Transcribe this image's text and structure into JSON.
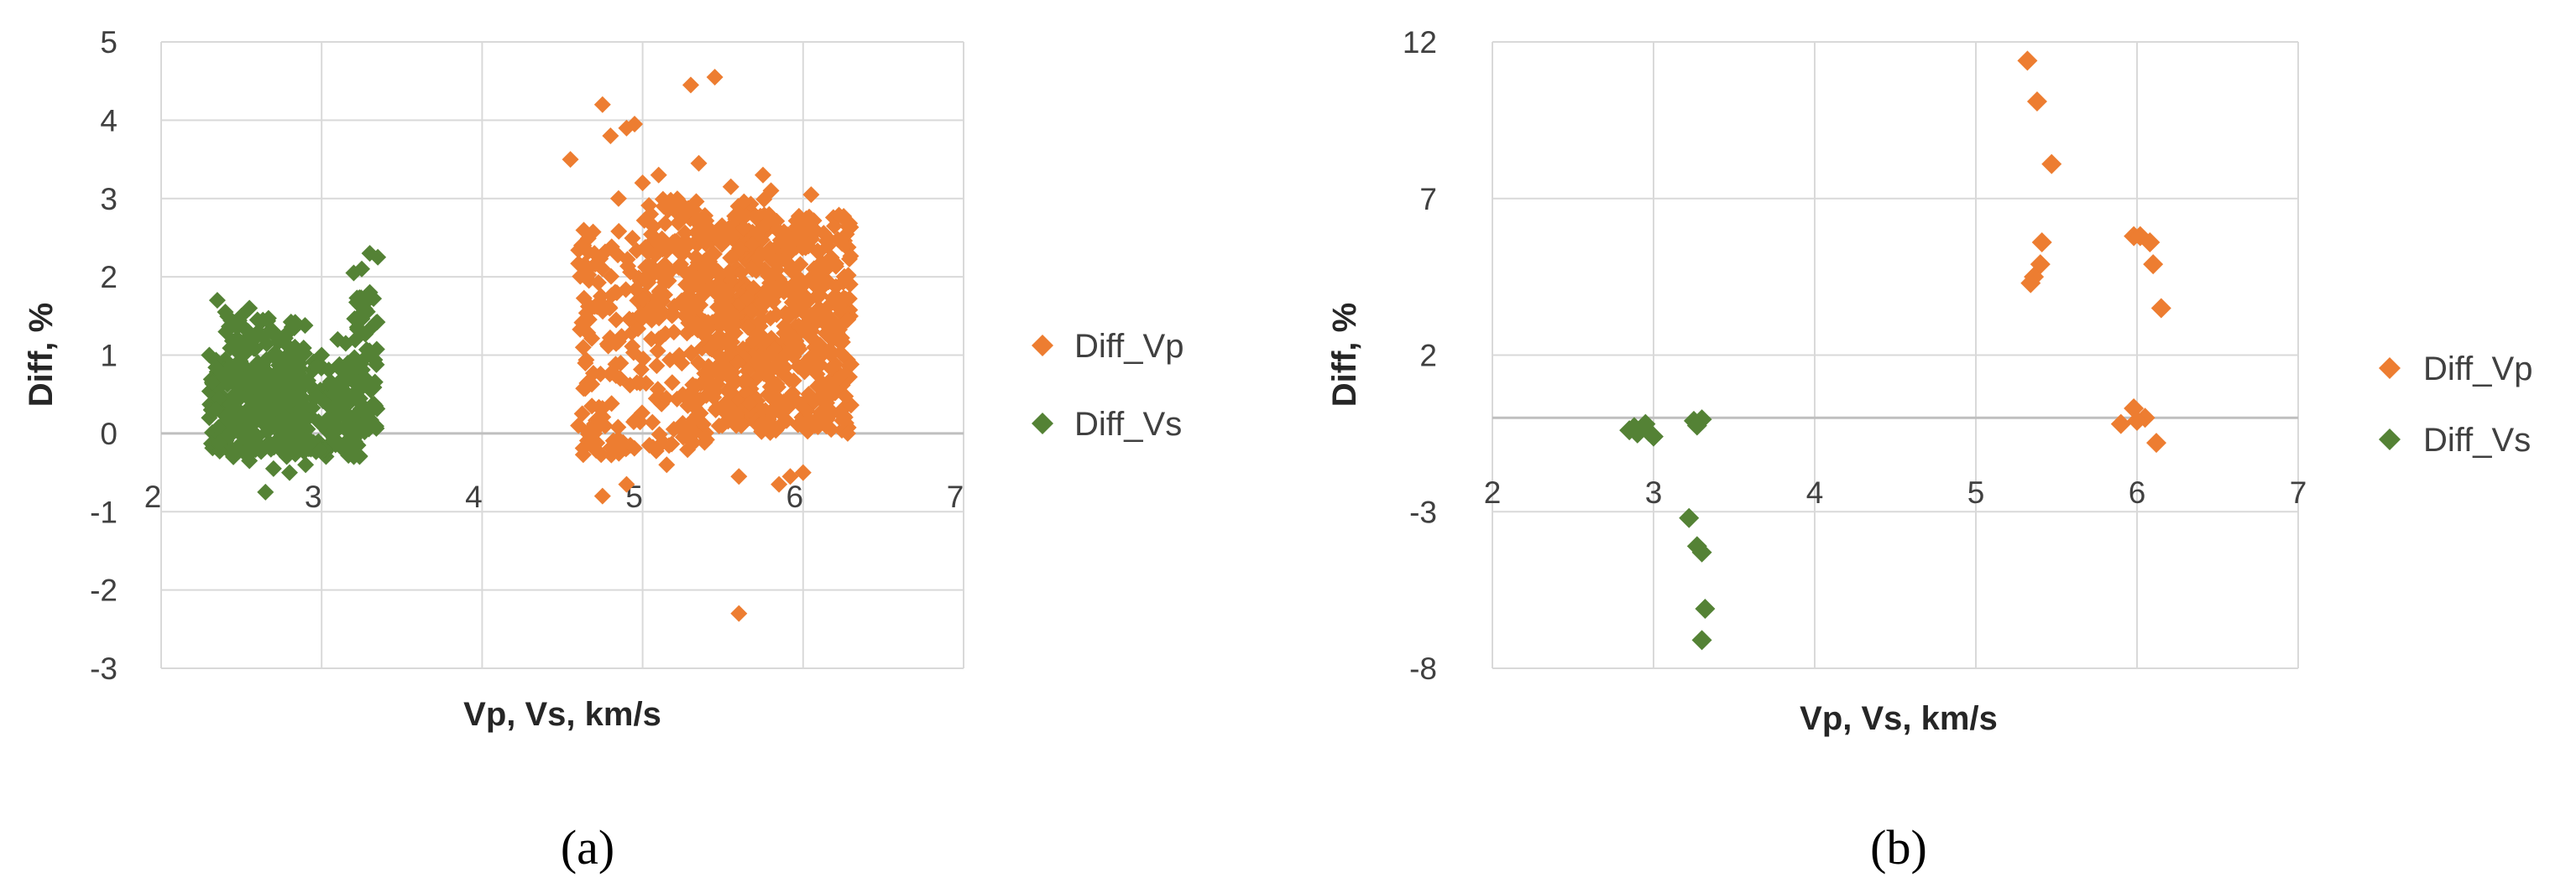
{
  "chart_data": [
    {
      "type": "scatter",
      "panel_label": "(a)",
      "title": "",
      "xlabel": "Vp, Vs, km/s",
      "ylabel": "Diff, %",
      "xlim": [
        2,
        7
      ],
      "ylim": [
        -3,
        5
      ],
      "xticks": [
        "2",
        "3",
        "4",
        "5",
        "6",
        "7"
      ],
      "yticks": [
        "-3",
        "-2",
        "-1",
        "0",
        "1",
        "2",
        "3",
        "4",
        "5"
      ],
      "grid": true,
      "legend_position": "right",
      "series": [
        {
          "name": "Diff_Vp",
          "color": "#ed7d31",
          "marker": "diamond",
          "points": [
            [
              4.55,
              3.5
            ],
            [
              4.62,
              2.4
            ],
            [
              4.7,
              2.3
            ],
            [
              4.75,
              4.2
            ],
            [
              4.8,
              3.8
            ],
            [
              4.85,
              3.0
            ],
            [
              4.9,
              3.9
            ],
            [
              4.95,
              3.95
            ],
            [
              5.0,
              3.2
            ],
            [
              5.05,
              2.8
            ],
            [
              5.1,
              3.3
            ],
            [
              5.2,
              2.9
            ],
            [
              5.3,
              4.45
            ],
            [
              5.35,
              3.45
            ],
            [
              5.45,
              4.55
            ],
            [
              5.55,
              3.15
            ],
            [
              5.75,
              3.3
            ],
            [
              5.8,
              3.1
            ],
            [
              6.05,
              3.05
            ],
            [
              5.6,
              -2.3
            ],
            [
              4.75,
              -0.8
            ],
            [
              4.9,
              -0.65
            ],
            [
              5.15,
              -0.4
            ],
            [
              5.6,
              -0.55
            ],
            [
              5.85,
              -0.65
            ],
            [
              5.92,
              -0.55
            ],
            [
              6.0,
              -0.5
            ],
            [
              4.6,
              0.1
            ],
            [
              4.7,
              0.0
            ]
          ],
          "clouds": [
            {
              "x": [
                5.3,
                6.3
              ],
              "y": [
                0.0,
                2.8
              ],
              "n": 650,
              "seed": 11
            },
            {
              "x": [
                4.6,
                5.4
              ],
              "y": [
                -0.3,
                2.6
              ],
              "n": 220,
              "seed": 23
            },
            {
              "x": [
                5.0,
                5.8
              ],
              "y": [
                1.5,
                3.0
              ],
              "n": 90,
              "seed": 37
            }
          ]
        },
        {
          "name": "Diff_Vs",
          "color": "#548235",
          "marker": "diamond",
          "points": [
            [
              2.35,
              1.7
            ],
            [
              2.4,
              1.55
            ],
            [
              2.5,
              1.5
            ],
            [
              2.55,
              1.6
            ],
            [
              2.6,
              1.45
            ],
            [
              2.7,
              1.3
            ],
            [
              3.2,
              2.05
            ],
            [
              3.25,
              2.1
            ],
            [
              3.3,
              2.3
            ],
            [
              3.35,
              2.25
            ],
            [
              3.3,
              1.8
            ],
            [
              3.25,
              1.5
            ],
            [
              2.65,
              -0.75
            ],
            [
              2.7,
              -0.45
            ],
            [
              2.8,
              -0.5
            ],
            [
              2.9,
              -0.4
            ],
            [
              2.45,
              -0.3
            ],
            [
              2.55,
              -0.35
            ],
            [
              3.1,
              1.2
            ],
            [
              3.15,
              1.15
            ],
            [
              3.0,
              1.0
            ],
            [
              2.3,
              1.0
            ],
            [
              2.3,
              0.2
            ]
          ],
          "clouds": [
            {
              "x": [
                2.3,
                3.25
              ],
              "y": [
                -0.3,
                0.95
              ],
              "n": 420,
              "seed": 5
            },
            {
              "x": [
                2.4,
                2.9
              ],
              "y": [
                0.6,
                1.5
              ],
              "n": 90,
              "seed": 17
            },
            {
              "x": [
                3.2,
                3.35
              ],
              "y": [
                0.0,
                1.8
              ],
              "n": 50,
              "seed": 29
            }
          ]
        }
      ]
    },
    {
      "type": "scatter",
      "panel_label": "(b)",
      "title": "",
      "xlabel": "Vp, Vs, km/s",
      "ylabel": "Diff, %",
      "xlim": [
        2,
        7
      ],
      "ylim": [
        -8,
        12
      ],
      "xticks": [
        "2",
        "3",
        "4",
        "5",
        "6",
        "7"
      ],
      "yticks": [
        "-8",
        "-3",
        "2",
        "7",
        "12"
      ],
      "grid": true,
      "legend_position": "right",
      "series": [
        {
          "name": "Diff_Vp",
          "color": "#ed7d31",
          "marker": "diamond",
          "points": [
            [
              5.32,
              11.4
            ],
            [
              5.38,
              10.1
            ],
            [
              5.47,
              8.1
            ],
            [
              5.41,
              5.6
            ],
            [
              5.4,
              4.9
            ],
            [
              5.36,
              4.5
            ],
            [
              5.34,
              4.3
            ],
            [
              5.98,
              5.8
            ],
            [
              6.02,
              5.8
            ],
            [
              6.08,
              5.6
            ],
            [
              6.1,
              4.9
            ],
            [
              6.15,
              3.5
            ],
            [
              5.98,
              0.3
            ],
            [
              6.05,
              0.0
            ],
            [
              5.9,
              -0.2
            ],
            [
              6.0,
              -0.1
            ],
            [
              6.12,
              -0.8
            ]
          ]
        },
        {
          "name": "Diff_Vs",
          "color": "#548235",
          "marker": "diamond",
          "points": [
            [
              2.85,
              -0.4
            ],
            [
              2.9,
              -0.5
            ],
            [
              2.95,
              -0.2
            ],
            [
              3.0,
              -0.6
            ],
            [
              2.88,
              -0.3
            ],
            [
              2.97,
              -0.45
            ],
            [
              3.25,
              -0.1
            ],
            [
              3.3,
              -0.05
            ],
            [
              3.27,
              -0.25
            ],
            [
              3.22,
              -3.2
            ],
            [
              3.27,
              -4.1
            ],
            [
              3.3,
              -4.3
            ],
            [
              3.32,
              -6.1
            ],
            [
              3.3,
              -7.1
            ]
          ]
        }
      ]
    }
  ]
}
